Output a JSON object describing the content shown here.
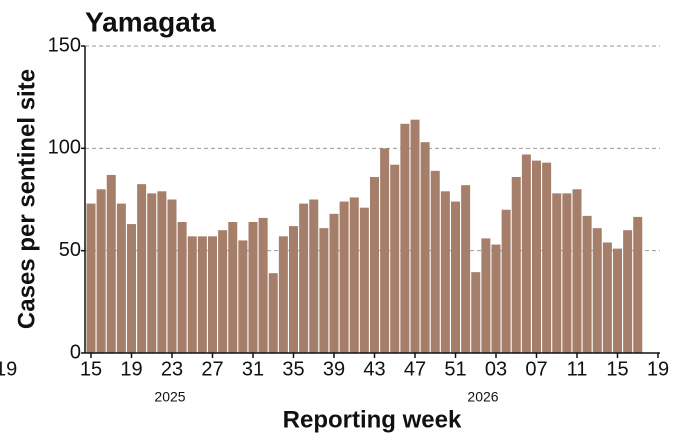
{
  "chart_data": {
    "type": "bar",
    "title": "Yamagata",
    "x_label": "Reporting week",
    "y_label": "Cases per sentinel site",
    "years": [
      "2025",
      "2026"
    ],
    "edge_label": "19",
    "color": "#a67f6b",
    "categories": [
      "15",
      null,
      null,
      null,
      "19",
      null,
      null,
      null,
      "23",
      null,
      null,
      null,
      "27",
      null,
      null,
      null,
      "31",
      null,
      null,
      null,
      "35",
      null,
      null,
      null,
      "39",
      null,
      null,
      null,
      "43",
      null,
      null,
      null,
      "47",
      null,
      null,
      null,
      "51",
      null,
      null,
      null,
      "03",
      null,
      null,
      null,
      "07",
      null,
      null,
      null,
      "11",
      null,
      null,
      null,
      "15",
      null,
      null,
      null,
      "19"
    ],
    "values": [
      73,
      80,
      87,
      73,
      63,
      82.5,
      78,
      79,
      75,
      64,
      57,
      57,
      57,
      60,
      64,
      55,
      64,
      66,
      39,
      57,
      62,
      73,
      75,
      61,
      68,
      74,
      76,
      71,
      86,
      100,
      92,
      112,
      114,
      103,
      89,
      79,
      74,
      82,
      39.5,
      56,
      53,
      70,
      86,
      97,
      94,
      93,
      78,
      78,
      80,
      67,
      61,
      54,
      51,
      60,
      66.5,
      null,
      null
    ],
    "ylim": [
      0,
      150
    ],
    "yticks": [
      0,
      50,
      100,
      150
    ],
    "grid": true
  }
}
